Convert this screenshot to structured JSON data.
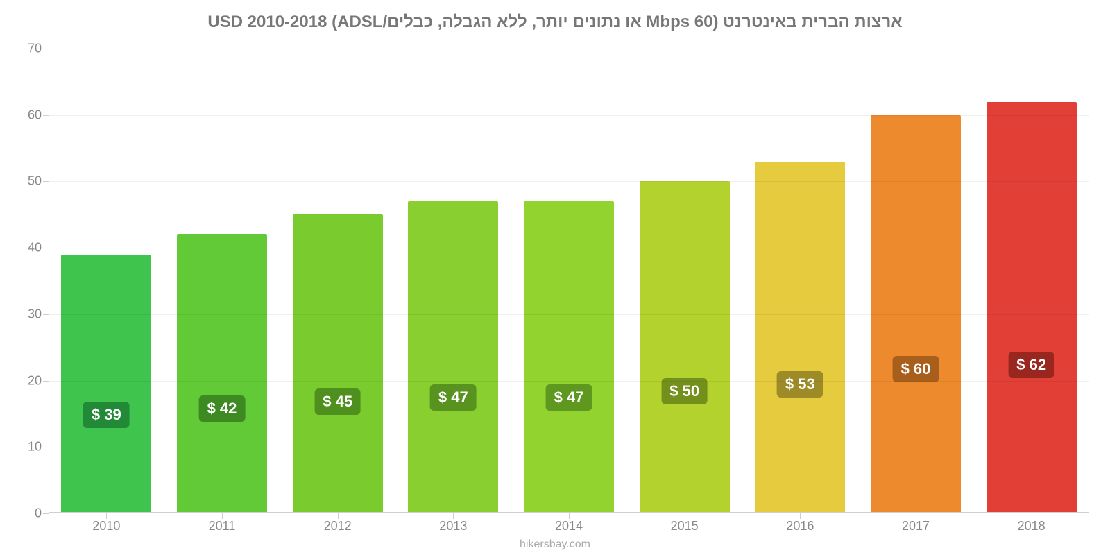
{
  "chart": {
    "type": "bar",
    "title": "ארצות הברית באינטרנט (60 Mbps או נתונים יותר, ללא הגבלה, כבלים/ADSL) USD 2010-2018",
    "title_color": "#777777",
    "title_fontsize": 24,
    "background_color": "#ffffff",
    "categories": [
      "2010",
      "2011",
      "2012",
      "2013",
      "2014",
      "2015",
      "2016",
      "2017",
      "2018"
    ],
    "values": [
      39,
      42,
      45,
      47,
      47,
      50,
      53,
      60,
      62
    ],
    "value_labels": [
      "$ 39",
      "$ 42",
      "$ 45",
      "$ 47",
      "$ 47",
      "$ 50",
      "$ 53",
      "$ 60",
      "$ 62"
    ],
    "bar_colors": [
      "#3fc44e",
      "#63ca37",
      "#7acc2e",
      "#88cf2f",
      "#92d32f",
      "#b4d22d",
      "#e6cb3f",
      "#ed8a2e",
      "#e24037"
    ],
    "badge_backgrounds": [
      "#228a36",
      "#3e8a22",
      "#4e8f1e",
      "#58931f",
      "#5e981f",
      "#74901c",
      "#9c8b26",
      "#a85f1b",
      "#992720"
    ],
    "ylim": [
      0,
      70
    ],
    "ytick_step": 10,
    "yticks": [
      0,
      10,
      20,
      30,
      40,
      50,
      60,
      70
    ],
    "axis_label_color": "#888888",
    "axis_label_fontsize": 18,
    "grid_color": "rgba(0,0,0,0.06)",
    "axis_line_color": "#cfcfcf",
    "bar_width_ratio": 0.78,
    "badge_y_value": 23,
    "value_label_fontsize": 22,
    "value_label_color": "#ffffff",
    "credit": "hikersbay.com",
    "credit_color": "#a9a9a9",
    "credit_fontsize": 16
  }
}
